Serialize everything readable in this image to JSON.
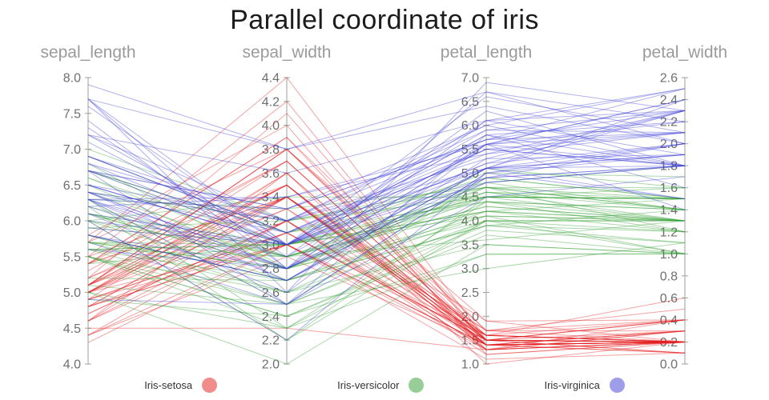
{
  "title": "Parallel coordinate of iris",
  "chart_data": {
    "type": "parallel-coordinates",
    "title": "Parallel coordinate of iris",
    "legend_position": "bottom",
    "axes": [
      {
        "label": "sepal_length",
        "min": 4.0,
        "max": 8.0,
        "tick_step": 0.5
      },
      {
        "label": "sepal_width",
        "min": 2.0,
        "max": 4.4,
        "tick_step": 0.2
      },
      {
        "label": "petal_length",
        "min": 1.0,
        "max": 7.0,
        "tick_step": 0.5
      },
      {
        "label": "petal_width",
        "min": 0.0,
        "max": 2.6,
        "tick_step": 0.2
      }
    ],
    "series": [
      {
        "name": "Iris-setosa",
        "color": "#e41a1c",
        "rows": [
          [
            5.1,
            3.5,
            1.4,
            0.2
          ],
          [
            4.9,
            3.0,
            1.4,
            0.2
          ],
          [
            4.7,
            3.2,
            1.3,
            0.2
          ],
          [
            4.6,
            3.1,
            1.5,
            0.2
          ],
          [
            5.0,
            3.6,
            1.4,
            0.2
          ],
          [
            5.4,
            3.9,
            1.7,
            0.4
          ],
          [
            4.6,
            3.4,
            1.4,
            0.3
          ],
          [
            5.0,
            3.4,
            1.5,
            0.2
          ],
          [
            4.4,
            2.9,
            1.4,
            0.2
          ],
          [
            4.9,
            3.1,
            1.5,
            0.1
          ],
          [
            5.4,
            3.7,
            1.5,
            0.2
          ],
          [
            4.8,
            3.4,
            1.6,
            0.2
          ],
          [
            4.8,
            3.0,
            1.4,
            0.1
          ],
          [
            4.3,
            3.0,
            1.1,
            0.1
          ],
          [
            5.8,
            4.0,
            1.2,
            0.2
          ],
          [
            5.7,
            4.4,
            1.5,
            0.4
          ],
          [
            5.4,
            3.9,
            1.3,
            0.4
          ],
          [
            5.1,
            3.5,
            1.4,
            0.3
          ],
          [
            5.7,
            3.8,
            1.7,
            0.3
          ],
          [
            5.1,
            3.8,
            1.5,
            0.3
          ],
          [
            5.4,
            3.4,
            1.7,
            0.2
          ],
          [
            5.1,
            3.7,
            1.5,
            0.4
          ],
          [
            4.6,
            3.6,
            1.0,
            0.2
          ],
          [
            5.1,
            3.3,
            1.7,
            0.5
          ],
          [
            4.8,
            3.4,
            1.9,
            0.2
          ],
          [
            5.0,
            3.0,
            1.6,
            0.2
          ],
          [
            5.0,
            3.4,
            1.6,
            0.4
          ],
          [
            5.2,
            3.5,
            1.5,
            0.2
          ],
          [
            5.2,
            3.4,
            1.4,
            0.2
          ],
          [
            4.7,
            3.2,
            1.6,
            0.2
          ],
          [
            4.8,
            3.1,
            1.6,
            0.2
          ],
          [
            5.4,
            3.4,
            1.5,
            0.4
          ],
          [
            5.2,
            4.1,
            1.5,
            0.1
          ],
          [
            5.5,
            4.2,
            1.4,
            0.2
          ],
          [
            4.9,
            3.1,
            1.5,
            0.2
          ],
          [
            5.0,
            3.2,
            1.2,
            0.2
          ],
          [
            5.5,
            3.5,
            1.3,
            0.2
          ],
          [
            4.9,
            3.6,
            1.4,
            0.1
          ],
          [
            4.4,
            3.0,
            1.3,
            0.2
          ],
          [
            5.1,
            3.4,
            1.5,
            0.2
          ],
          [
            5.0,
            3.5,
            1.3,
            0.3
          ],
          [
            4.5,
            2.3,
            1.3,
            0.3
          ],
          [
            4.4,
            3.2,
            1.3,
            0.2
          ],
          [
            5.0,
            3.5,
            1.6,
            0.6
          ],
          [
            5.1,
            3.8,
            1.9,
            0.4
          ],
          [
            4.8,
            3.0,
            1.4,
            0.3
          ],
          [
            5.1,
            3.8,
            1.6,
            0.2
          ],
          [
            4.6,
            3.2,
            1.4,
            0.2
          ],
          [
            5.3,
            3.7,
            1.5,
            0.2
          ],
          [
            5.0,
            3.3,
            1.4,
            0.2
          ]
        ]
      },
      {
        "name": "Iris-versicolor",
        "color": "#2f9e2f",
        "rows": [
          [
            7.0,
            3.2,
            4.7,
            1.4
          ],
          [
            6.4,
            3.2,
            4.5,
            1.5
          ],
          [
            6.9,
            3.1,
            4.9,
            1.5
          ],
          [
            5.5,
            2.3,
            4.0,
            1.3
          ],
          [
            6.5,
            2.8,
            4.6,
            1.5
          ],
          [
            5.7,
            2.8,
            4.5,
            1.3
          ],
          [
            6.3,
            3.3,
            4.7,
            1.6
          ],
          [
            4.9,
            2.4,
            3.3,
            1.0
          ],
          [
            6.6,
            2.9,
            4.6,
            1.3
          ],
          [
            5.2,
            2.7,
            3.9,
            1.4
          ],
          [
            5.0,
            2.0,
            3.5,
            1.0
          ],
          [
            5.9,
            3.0,
            4.2,
            1.5
          ],
          [
            6.0,
            2.2,
            4.0,
            1.0
          ],
          [
            6.1,
            2.9,
            4.7,
            1.4
          ],
          [
            5.6,
            2.9,
            3.6,
            1.3
          ],
          [
            6.7,
            3.1,
            4.4,
            1.4
          ],
          [
            5.6,
            3.0,
            4.5,
            1.5
          ],
          [
            5.8,
            2.7,
            4.1,
            1.0
          ],
          [
            6.2,
            2.2,
            4.5,
            1.5
          ],
          [
            5.6,
            2.5,
            3.9,
            1.1
          ],
          [
            5.9,
            3.2,
            4.8,
            1.8
          ],
          [
            6.1,
            2.8,
            4.0,
            1.3
          ],
          [
            6.3,
            2.5,
            4.9,
            1.5
          ],
          [
            6.1,
            2.8,
            4.7,
            1.2
          ],
          [
            6.4,
            2.9,
            4.3,
            1.3
          ],
          [
            6.6,
            3.0,
            4.4,
            1.4
          ],
          [
            6.8,
            2.8,
            4.8,
            1.4
          ],
          [
            6.7,
            3.0,
            5.0,
            1.7
          ],
          [
            6.0,
            2.9,
            4.5,
            1.5
          ],
          [
            5.7,
            2.6,
            3.5,
            1.0
          ],
          [
            5.5,
            2.4,
            3.8,
            1.1
          ],
          [
            5.5,
            2.4,
            3.7,
            1.0
          ],
          [
            5.8,
            2.7,
            3.9,
            1.2
          ],
          [
            6.0,
            2.7,
            5.1,
            1.6
          ],
          [
            5.4,
            3.0,
            4.5,
            1.5
          ],
          [
            6.0,
            3.4,
            4.5,
            1.6
          ],
          [
            6.7,
            3.1,
            4.7,
            1.5
          ],
          [
            6.3,
            2.3,
            4.4,
            1.3
          ],
          [
            5.6,
            3.0,
            4.1,
            1.3
          ],
          [
            5.5,
            2.5,
            4.0,
            1.3
          ],
          [
            5.5,
            2.6,
            4.4,
            1.2
          ],
          [
            6.1,
            3.0,
            4.6,
            1.4
          ],
          [
            5.8,
            2.6,
            4.0,
            1.2
          ],
          [
            5.0,
            2.3,
            3.3,
            1.0
          ],
          [
            5.6,
            2.7,
            4.2,
            1.3
          ],
          [
            5.7,
            3.0,
            4.2,
            1.2
          ],
          [
            5.7,
            2.9,
            4.2,
            1.3
          ],
          [
            6.2,
            2.9,
            4.3,
            1.3
          ],
          [
            5.1,
            2.5,
            3.0,
            1.1
          ],
          [
            5.7,
            2.8,
            4.1,
            1.3
          ]
        ]
      },
      {
        "name": "Iris-virginica",
        "color": "#3b3bd6",
        "rows": [
          [
            6.3,
            3.3,
            6.0,
            2.5
          ],
          [
            5.8,
            2.7,
            5.1,
            1.9
          ],
          [
            7.1,
            3.0,
            5.9,
            2.1
          ],
          [
            6.3,
            2.9,
            5.6,
            1.8
          ],
          [
            6.5,
            3.0,
            5.8,
            2.2
          ],
          [
            7.6,
            3.0,
            6.6,
            2.1
          ],
          [
            4.9,
            2.5,
            4.5,
            1.7
          ],
          [
            7.3,
            2.9,
            6.3,
            1.8
          ],
          [
            6.7,
            2.5,
            5.8,
            1.8
          ],
          [
            7.2,
            3.6,
            6.1,
            2.5
          ],
          [
            6.5,
            3.2,
            5.1,
            2.0
          ],
          [
            6.4,
            2.7,
            5.3,
            1.9
          ],
          [
            6.8,
            3.0,
            5.5,
            2.1
          ],
          [
            5.7,
            2.5,
            5.0,
            2.0
          ],
          [
            5.8,
            2.8,
            5.1,
            2.4
          ],
          [
            6.4,
            3.2,
            5.3,
            2.3
          ],
          [
            6.5,
            3.0,
            5.5,
            1.8
          ],
          [
            7.7,
            3.8,
            6.7,
            2.2
          ],
          [
            7.7,
            2.6,
            6.9,
            2.3
          ],
          [
            6.0,
            2.2,
            5.0,
            1.5
          ],
          [
            6.9,
            3.2,
            5.7,
            2.3
          ],
          [
            5.6,
            2.8,
            4.9,
            2.0
          ],
          [
            7.7,
            2.8,
            6.7,
            2.0
          ],
          [
            6.3,
            2.7,
            4.9,
            1.8
          ],
          [
            6.7,
            3.3,
            5.7,
            2.1
          ],
          [
            7.2,
            3.2,
            6.0,
            1.8
          ],
          [
            6.2,
            2.8,
            4.8,
            1.8
          ],
          [
            6.1,
            3.0,
            4.9,
            1.8
          ],
          [
            6.4,
            2.8,
            5.6,
            2.1
          ],
          [
            7.2,
            3.0,
            5.8,
            1.6
          ],
          [
            7.4,
            2.8,
            6.1,
            1.9
          ],
          [
            7.9,
            3.8,
            6.4,
            2.0
          ],
          [
            6.4,
            2.8,
            5.6,
            2.2
          ],
          [
            6.3,
            2.8,
            5.1,
            1.5
          ],
          [
            6.1,
            2.6,
            5.6,
            1.4
          ],
          [
            7.7,
            3.0,
            6.1,
            2.3
          ],
          [
            6.3,
            3.4,
            5.6,
            2.4
          ],
          [
            6.4,
            3.1,
            5.5,
            1.8
          ],
          [
            6.0,
            3.0,
            4.8,
            1.8
          ],
          [
            6.9,
            3.1,
            5.4,
            2.1
          ],
          [
            6.7,
            3.1,
            5.6,
            2.4
          ],
          [
            6.9,
            3.1,
            5.1,
            2.3
          ],
          [
            5.8,
            2.7,
            5.1,
            1.9
          ],
          [
            6.8,
            3.2,
            5.9,
            2.3
          ],
          [
            6.7,
            3.3,
            5.7,
            2.5
          ],
          [
            6.7,
            3.0,
            5.2,
            2.3
          ],
          [
            6.3,
            2.5,
            5.0,
            1.9
          ],
          [
            6.5,
            3.0,
            5.2,
            2.0
          ],
          [
            6.2,
            3.4,
            5.4,
            2.3
          ],
          [
            5.9,
            3.0,
            5.1,
            1.8
          ]
        ]
      }
    ]
  },
  "legend": {
    "items": [
      "Iris-setosa",
      "Iris-versicolor",
      "Iris-virginica"
    ]
  }
}
